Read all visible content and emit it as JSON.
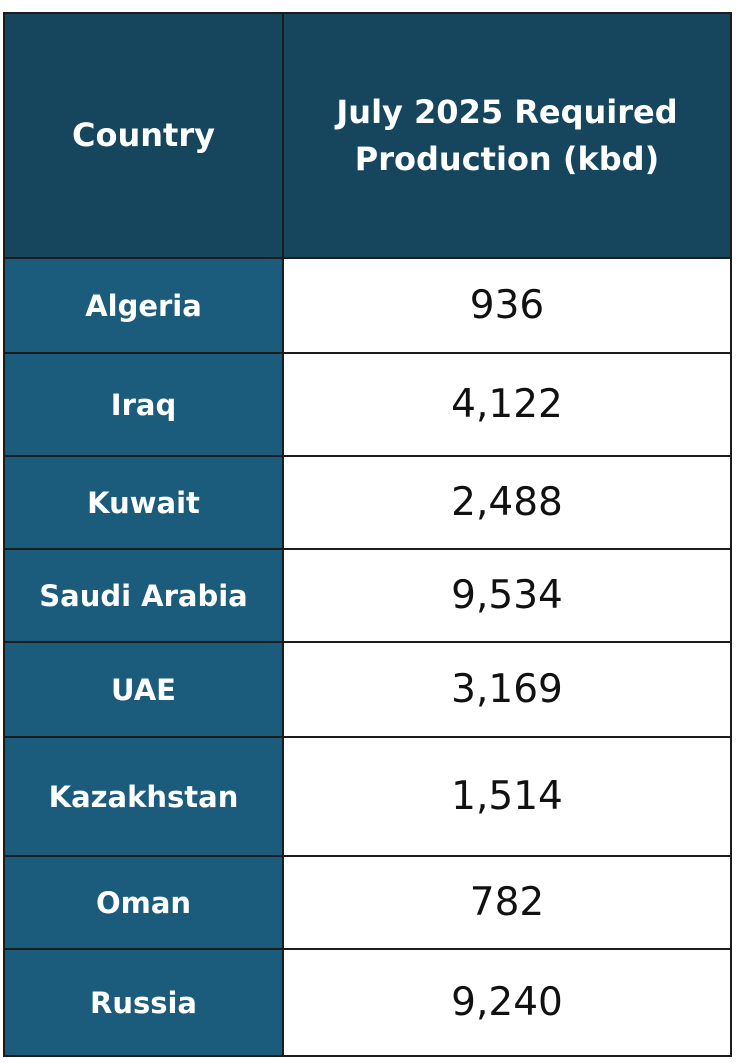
{
  "table": {
    "header": [
      "Country",
      "July 2025 Required Production (kbd)"
    ],
    "rows": [
      [
        "Algeria",
        "936"
      ],
      [
        "Iraq",
        "4,122"
      ],
      [
        "Kuwait",
        "2,488"
      ],
      [
        "Saudi Arabia",
        "9,534"
      ],
      [
        "UAE",
        "3,169"
      ],
      [
        "Kazakhstan",
        "1,514"
      ],
      [
        "Oman",
        "782"
      ],
      [
        "Russia",
        "9,240"
      ]
    ]
  }
}
